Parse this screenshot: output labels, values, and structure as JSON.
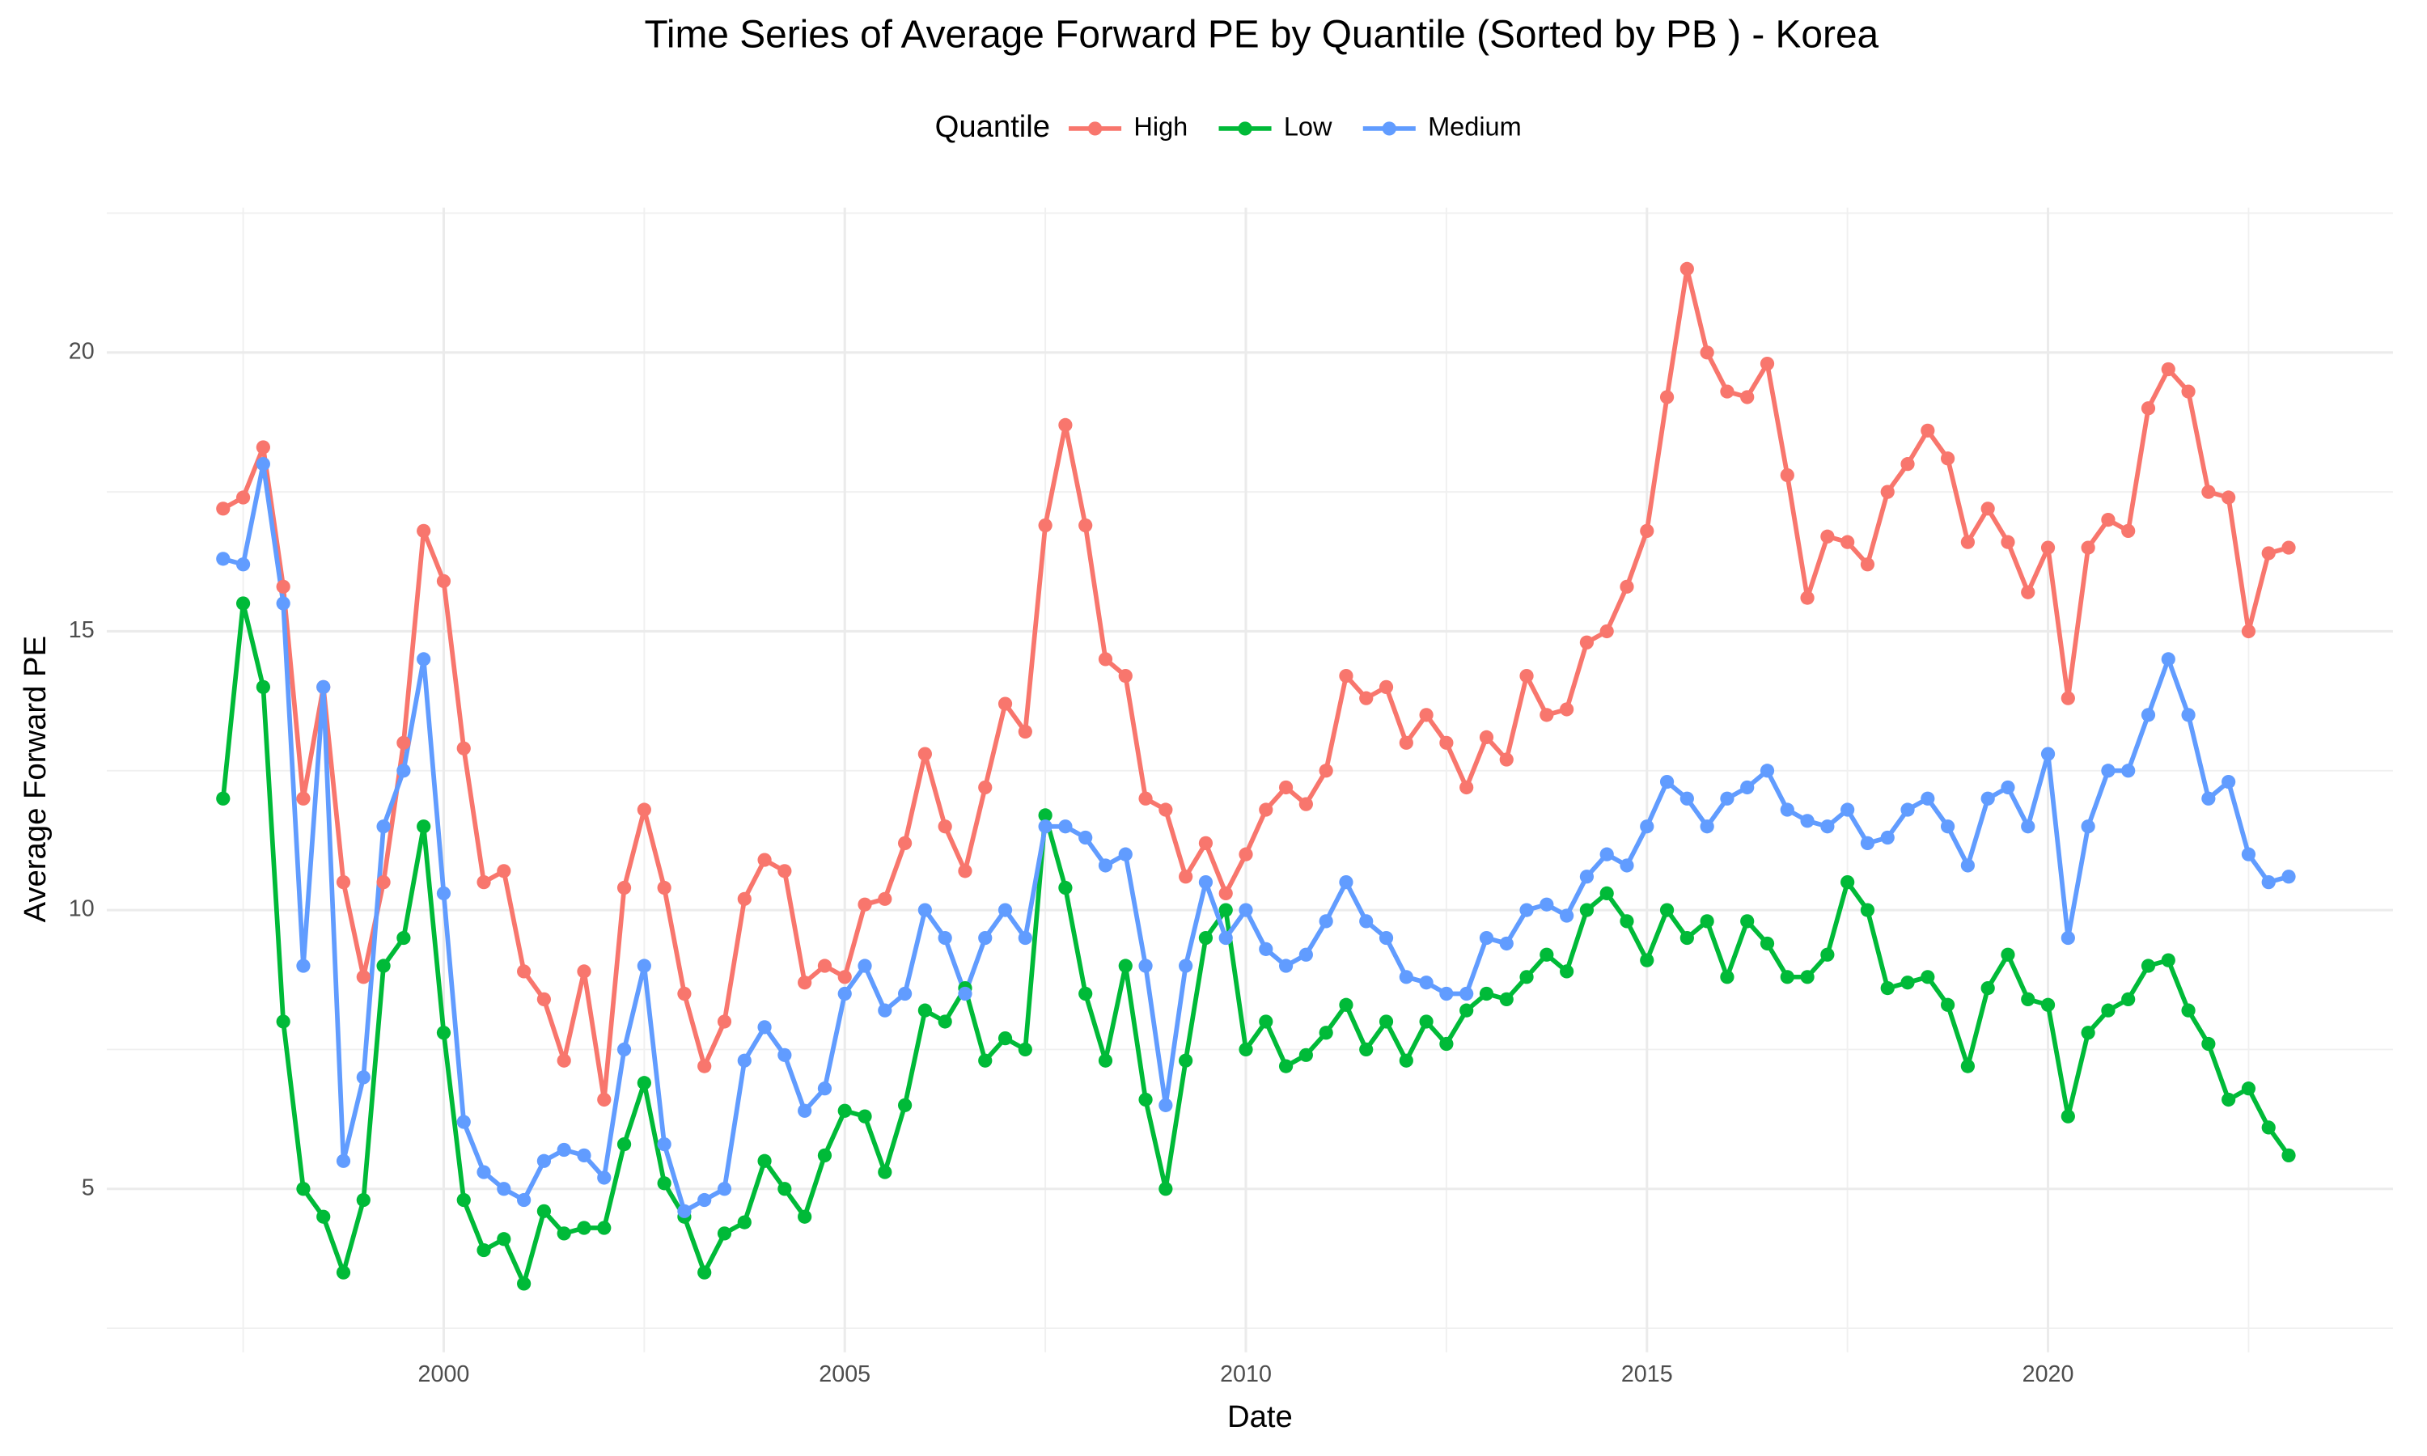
{
  "chart_data": {
    "type": "line",
    "title": "Time Series of Average Forward PE by Quantile (Sorted by PB ) - Korea",
    "x_label": "Date",
    "y_label": "Average Forward PE",
    "legend_title": "Quantile",
    "legend_position": "top",
    "grid": true,
    "xlim": [
      1995.8,
      2024.3
    ],
    "xticks": [
      2000,
      2005,
      2010,
      2015,
      2020
    ],
    "ylim": [
      2.07,
      22.6
    ],
    "yticks": [
      5,
      10,
      15,
      20
    ],
    "x": [
      1997.25,
      1997.5,
      1997.75,
      1998,
      1998.25,
      1998.5,
      1998.75,
      1999,
      1999.25,
      1999.5,
      1999.75,
      2000,
      2000.25,
      2000.5,
      2000.75,
      2001,
      2001.25,
      2001.5,
      2001.75,
      2002,
      2002.25,
      2002.5,
      2002.75,
      2003,
      2003.25,
      2003.5,
      2003.75,
      2004,
      2004.25,
      2004.5,
      2004.75,
      2005,
      2005.25,
      2005.5,
      2005.75,
      2006,
      2006.25,
      2006.5,
      2006.75,
      2007,
      2007.25,
      2007.5,
      2007.75,
      2008,
      2008.25,
      2008.5,
      2008.75,
      2009,
      2009.25,
      2009.5,
      2009.75,
      2010,
      2010.25,
      2010.5,
      2010.75,
      2011,
      2011.25,
      2011.5,
      2011.75,
      2012,
      2012.25,
      2012.5,
      2012.75,
      2013,
      2013.25,
      2013.5,
      2013.75,
      2014,
      2014.25,
      2014.5,
      2014.75,
      2015,
      2015.25,
      2015.5,
      2015.75,
      2016,
      2016.25,
      2016.5,
      2016.75,
      2017,
      2017.25,
      2017.5,
      2017.75,
      2018,
      2018.25,
      2018.5,
      2018.75,
      2019,
      2019.25,
      2019.5,
      2019.75,
      2020,
      2020.25,
      2020.5,
      2020.75,
      2021,
      2021.25,
      2021.5,
      2021.75,
      2022,
      2022.25,
      2022.5,
      2022.75,
      2023
    ],
    "series": [
      {
        "name": "High",
        "color": "#F8766D",
        "values": [
          17.2,
          17.4,
          18.3,
          15.8,
          12.0,
          14.0,
          10.5,
          8.8,
          10.5,
          13.0,
          16.8,
          15.9,
          12.9,
          10.5,
          10.7,
          8.9,
          8.4,
          7.3,
          8.9,
          6.6,
          10.4,
          11.8,
          10.4,
          8.5,
          7.2,
          8.0,
          10.2,
          10.9,
          10.7,
          8.7,
          9.0,
          8.8,
          10.1,
          10.2,
          11.2,
          12.8,
          11.5,
          10.7,
          12.2,
          13.7,
          13.2,
          16.9,
          18.7,
          16.9,
          14.5,
          14.2,
          12.0,
          11.8,
          10.6,
          11.2,
          10.3,
          11.0,
          11.8,
          12.2,
          11.9,
          12.5,
          14.2,
          13.8,
          14.0,
          13.0,
          13.5,
          13.0,
          12.2,
          13.1,
          12.7,
          14.2,
          13.5,
          13.6,
          14.8,
          15.0,
          15.8,
          16.8,
          19.2,
          21.5,
          20.0,
          19.3,
          19.2,
          19.8,
          17.8,
          15.6,
          16.7,
          16.6,
          16.2,
          17.5,
          18.0,
          18.6,
          18.1,
          16.6,
          17.2,
          16.6,
          15.7,
          16.5,
          13.8,
          16.5,
          17.0,
          16.8,
          19.0,
          19.7,
          19.3,
          17.5,
          17.4,
          15.0,
          16.4,
          16.5
        ]
      },
      {
        "name": "Low",
        "color": "#00BA38",
        "values": [
          12.0,
          15.5,
          14.0,
          8.0,
          5.0,
          4.5,
          3.5,
          4.8,
          9.0,
          9.5,
          11.5,
          7.8,
          4.8,
          3.9,
          4.1,
          3.3,
          4.6,
          4.2,
          4.3,
          4.3,
          5.8,
          6.9,
          5.1,
          4.5,
          3.5,
          4.2,
          4.4,
          5.5,
          5.0,
          4.5,
          5.6,
          6.4,
          6.3,
          5.3,
          6.5,
          8.2,
          8.0,
          8.6,
          7.3,
          7.7,
          7.5,
          11.7,
          10.4,
          8.5,
          7.3,
          9.0,
          6.6,
          5.0,
          7.3,
          9.5,
          10.0,
          7.5,
          8.0,
          7.2,
          7.4,
          7.8,
          8.3,
          7.5,
          8.0,
          7.3,
          8.0,
          7.6,
          8.2,
          8.5,
          8.4,
          8.8,
          9.2,
          8.9,
          10.0,
          10.3,
          9.8,
          9.1,
          10.0,
          9.5,
          9.8,
          8.8,
          9.8,
          9.4,
          8.8,
          8.8,
          9.2,
          10.5,
          10.0,
          8.6,
          8.7,
          8.8,
          8.3,
          7.2,
          8.6,
          9.2,
          8.4,
          8.3,
          6.3,
          7.8,
          8.2,
          8.4,
          9.0,
          9.1,
          8.2,
          7.6,
          6.6,
          6.8,
          6.1,
          5.6
        ]
      },
      {
        "name": "Medium",
        "color": "#619CFF",
        "values": [
          16.3,
          16.2,
          18.0,
          15.5,
          9.0,
          14.0,
          5.5,
          7.0,
          11.5,
          12.5,
          14.5,
          10.3,
          6.2,
          5.3,
          5.0,
          4.8,
          5.5,
          5.7,
          5.6,
          5.2,
          7.5,
          9.0,
          5.8,
          4.6,
          4.8,
          5.0,
          7.3,
          7.9,
          7.4,
          6.4,
          6.8,
          8.5,
          9.0,
          8.2,
          8.5,
          10.0,
          9.5,
          8.5,
          9.5,
          10.0,
          9.5,
          11.5,
          11.5,
          11.3,
          10.8,
          11.0,
          9.0,
          6.5,
          9.0,
          10.5,
          9.5,
          10.0,
          9.3,
          9.0,
          9.2,
          9.8,
          10.5,
          9.8,
          9.5,
          8.8,
          8.7,
          8.5,
          8.5,
          9.5,
          9.4,
          10.0,
          10.1,
          9.9,
          10.6,
          11.0,
          10.8,
          11.5,
          12.3,
          12.0,
          11.5,
          12.0,
          12.2,
          12.5,
          11.8,
          11.6,
          11.5,
          11.8,
          11.2,
          11.3,
          11.8,
          12.0,
          11.5,
          10.8,
          12.0,
          12.2,
          11.5,
          12.8,
          9.5,
          11.5,
          12.5,
          12.5,
          13.5,
          14.5,
          13.5,
          12.0,
          12.3,
          11.0,
          10.5,
          10.6
        ]
      }
    ]
  }
}
